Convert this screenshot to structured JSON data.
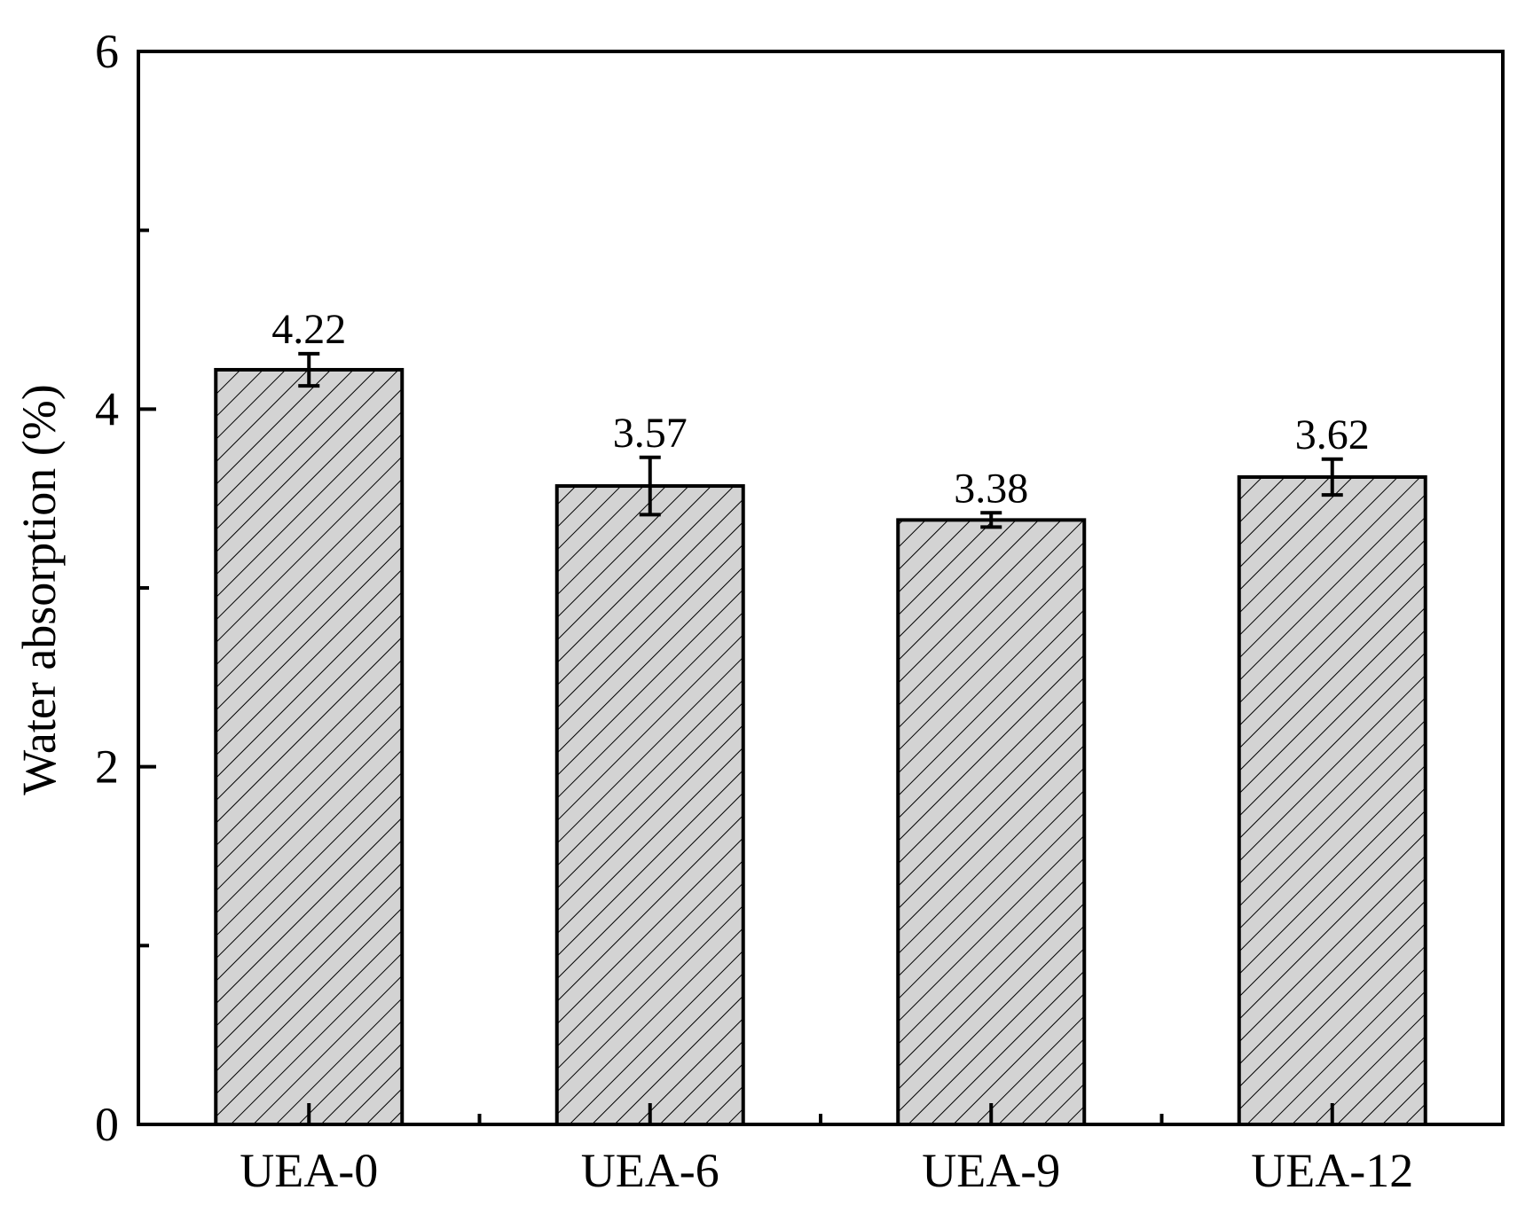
{
  "chart_data": {
    "type": "bar",
    "title": "",
    "xlabel": "",
    "ylabel": "Water absorption (%)",
    "categories": [
      "UEA-0",
      "UEA-6",
      "UEA-9",
      "UEA-12"
    ],
    "values": [
      4.22,
      3.57,
      3.38,
      3.62
    ],
    "value_labels": [
      "4.22",
      "3.57",
      "3.38",
      "3.62"
    ],
    "error_bars": [
      0.09,
      0.16,
      0.04,
      0.1
    ],
    "ylim": [
      0,
      6
    ],
    "y_major_ticks": [
      0,
      2,
      4,
      6
    ],
    "y_minor_ticks": [
      1,
      3,
      5
    ],
    "grid": false,
    "legend": "none",
    "bar_fill": "#d3d3d3",
    "bar_pattern": "diagonal-hatch",
    "stroke_color": "#000000"
  }
}
